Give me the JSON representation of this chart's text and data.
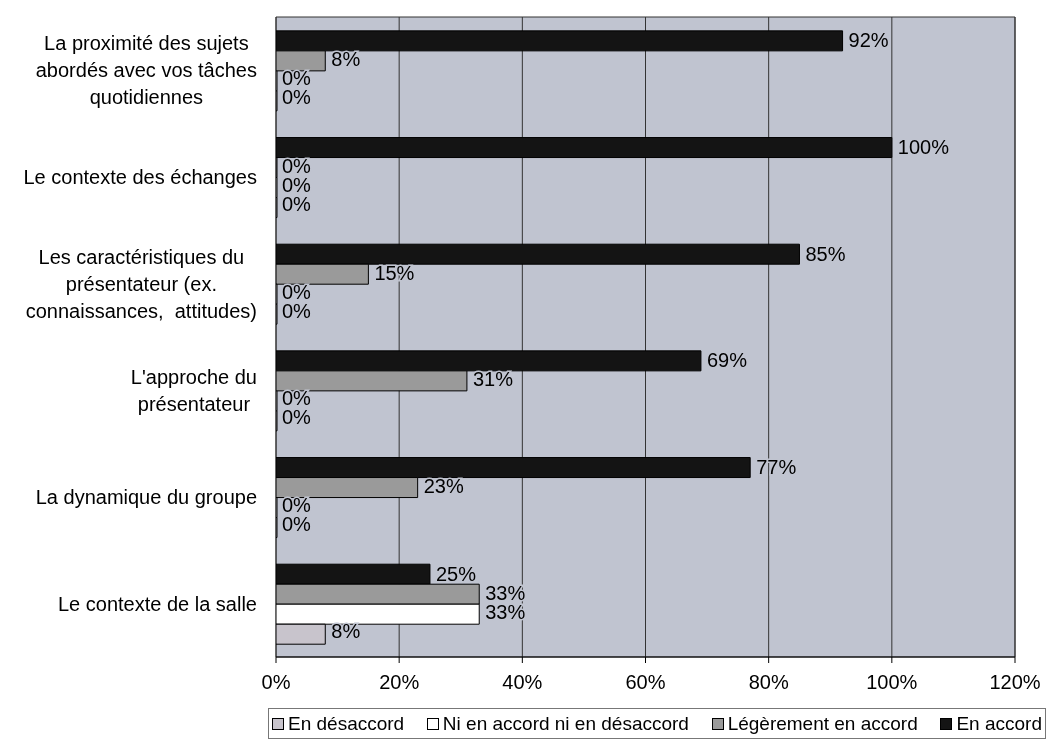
{
  "chart_data": {
    "type": "bar",
    "orientation": "horizontal",
    "categories": [
      "La proximité des sujets abordés avec vos tâches quotidiennes",
      "Le contexte des échanges",
      "Les caractéristiques du présentateur (ex. connaissances,  attitudes)",
      "L'approche du présentateur",
      "La dynamique du groupe",
      "Le contexte de la salle"
    ],
    "series": [
      {
        "name": "En accord",
        "color": "#141414",
        "values": [
          92,
          100,
          85,
          69,
          77,
          25
        ],
        "value_labels": [
          "92%",
          "100%",
          "85%",
          "69%",
          "77%",
          "25%"
        ]
      },
      {
        "name": "Légèrement en accord",
        "color": "#9a9a9a",
        "values": [
          8,
          0,
          15,
          31,
          23,
          33
        ],
        "value_labels": [
          "8%",
          "0%",
          "15%",
          "31%",
          "23%",
          "33%"
        ]
      },
      {
        "name": "Ni en accord ni en désaccord",
        "color": "#ffffff",
        "values": [
          0,
          0,
          0,
          0,
          0,
          33
        ],
        "value_labels": [
          "0%",
          "0%",
          "0%",
          "0%",
          "0%",
          "33%"
        ]
      },
      {
        "name": "En désaccord",
        "color": "#c8c4cc",
        "values": [
          0,
          0,
          0,
          0,
          0,
          8
        ],
        "value_labels": [
          "0%",
          "0%",
          "0%",
          "0%",
          "0%",
          "8%"
        ]
      }
    ],
    "xlim": [
      0,
      120
    ],
    "xticks": [
      {
        "value": 0,
        "label": "0%"
      },
      {
        "value": 20,
        "label": "20%"
      },
      {
        "value": 40,
        "label": "40%"
      },
      {
        "value": 60,
        "label": "60%"
      },
      {
        "value": 80,
        "label": "80%"
      },
      {
        "value": 100,
        "label": "100%"
      },
      {
        "value": 120,
        "label": "120%"
      }
    ],
    "grid": "x",
    "legend": "bottom"
  }
}
